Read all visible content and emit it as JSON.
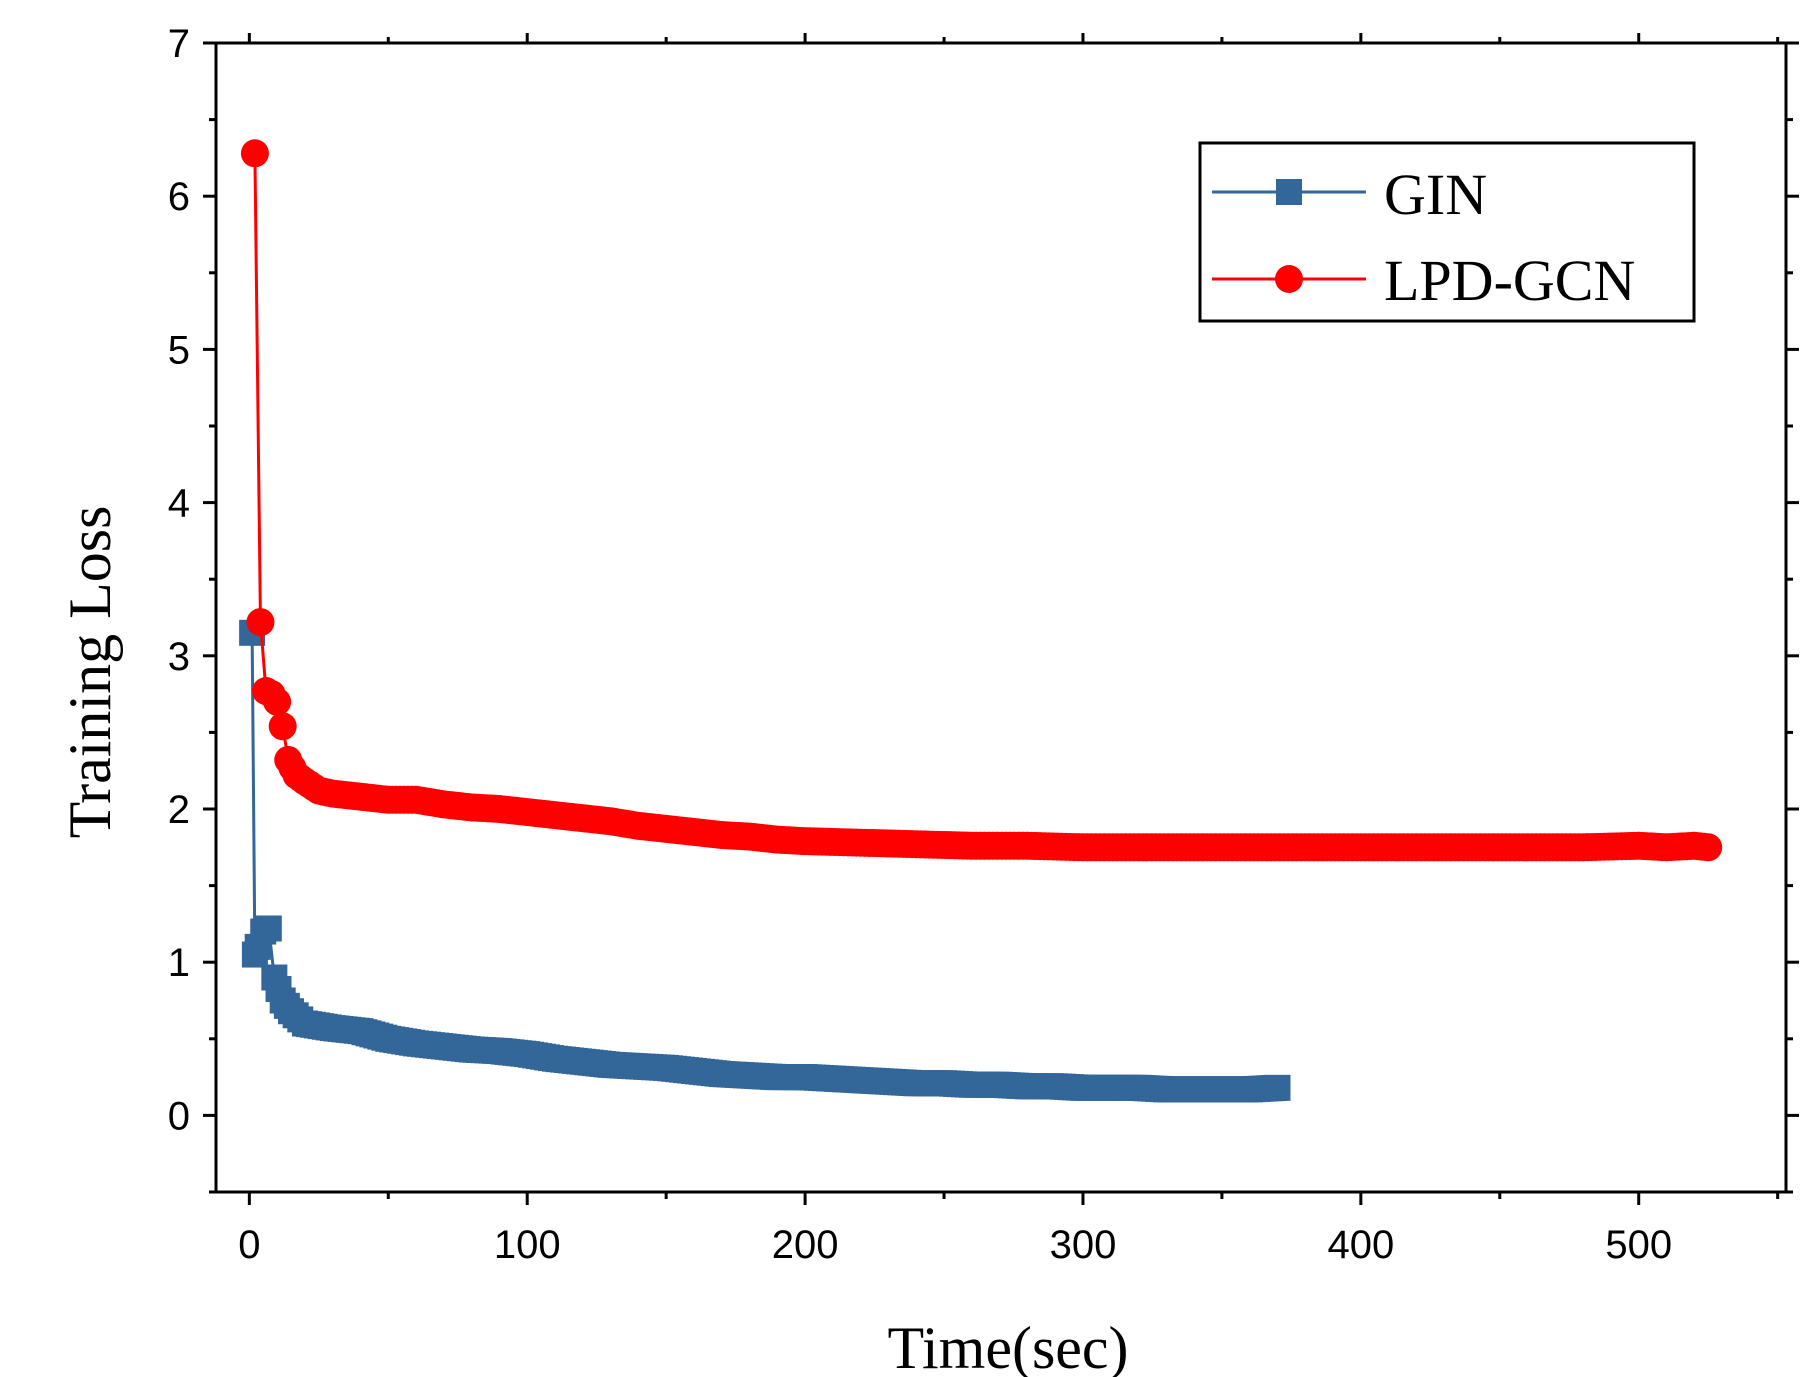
{
  "chart_data": {
    "type": "line",
    "title": "",
    "xlabel": "Time(sec)",
    "ylabel": "Training Loss",
    "xlim": [
      -12,
      553
    ],
    "ylim": [
      -0.5,
      7
    ],
    "xticks": [
      0,
      100,
      200,
      300,
      400,
      500
    ],
    "yticks": [
      0,
      1,
      2,
      3,
      4,
      5,
      6,
      7
    ],
    "xtick_labels": [
      "0",
      "100",
      "200",
      "300",
      "400",
      "500"
    ],
    "ytick_labels": [
      "0",
      "1",
      "2",
      "3",
      "4",
      "5",
      "6",
      "7"
    ],
    "legend_position": "top-right",
    "series": [
      {
        "name": "GIN",
        "color": "#336699",
        "marker": "square",
        "x": [
          1,
          2,
          3,
          5,
          7,
          9,
          12,
          15,
          20,
          30,
          40,
          50,
          60,
          70,
          80,
          90,
          100,
          110,
          120,
          130,
          140,
          150,
          160,
          170,
          180,
          190,
          200,
          210,
          220,
          230,
          240,
          250,
          260,
          270,
          280,
          290,
          300,
          310,
          320,
          330,
          340,
          350,
          360,
          370
        ],
        "y": [
          3.15,
          1.05,
          1.1,
          1.2,
          1.22,
          0.9,
          0.75,
          0.68,
          0.6,
          0.57,
          0.55,
          0.5,
          0.47,
          0.45,
          0.43,
          0.42,
          0.4,
          0.37,
          0.35,
          0.33,
          0.32,
          0.31,
          0.29,
          0.27,
          0.26,
          0.25,
          0.25,
          0.24,
          0.23,
          0.22,
          0.21,
          0.21,
          0.2,
          0.2,
          0.19,
          0.19,
          0.18,
          0.18,
          0.18,
          0.17,
          0.17,
          0.17,
          0.17,
          0.18
        ]
      },
      {
        "name": "LPD-GCN",
        "color": "#ff0000",
        "marker": "circle",
        "x": [
          2,
          4,
          6,
          8,
          10,
          12,
          14,
          17,
          20,
          25,
          30,
          40,
          50,
          60,
          70,
          80,
          90,
          100,
          110,
          120,
          130,
          140,
          150,
          160,
          170,
          180,
          190,
          200,
          220,
          240,
          260,
          280,
          300,
          320,
          340,
          360,
          380,
          400,
          420,
          440,
          460,
          480,
          500,
          510,
          520,
          525
        ],
        "y": [
          6.28,
          3.22,
          2.77,
          2.75,
          2.7,
          2.54,
          2.32,
          2.22,
          2.18,
          2.12,
          2.1,
          2.08,
          2.06,
          2.06,
          2.03,
          2.01,
          2.0,
          1.98,
          1.96,
          1.94,
          1.92,
          1.89,
          1.87,
          1.85,
          1.83,
          1.82,
          1.8,
          1.79,
          1.78,
          1.77,
          1.76,
          1.76,
          1.75,
          1.75,
          1.75,
          1.75,
          1.75,
          1.75,
          1.75,
          1.75,
          1.75,
          1.75,
          1.76,
          1.75,
          1.76,
          1.75
        ]
      }
    ]
  }
}
